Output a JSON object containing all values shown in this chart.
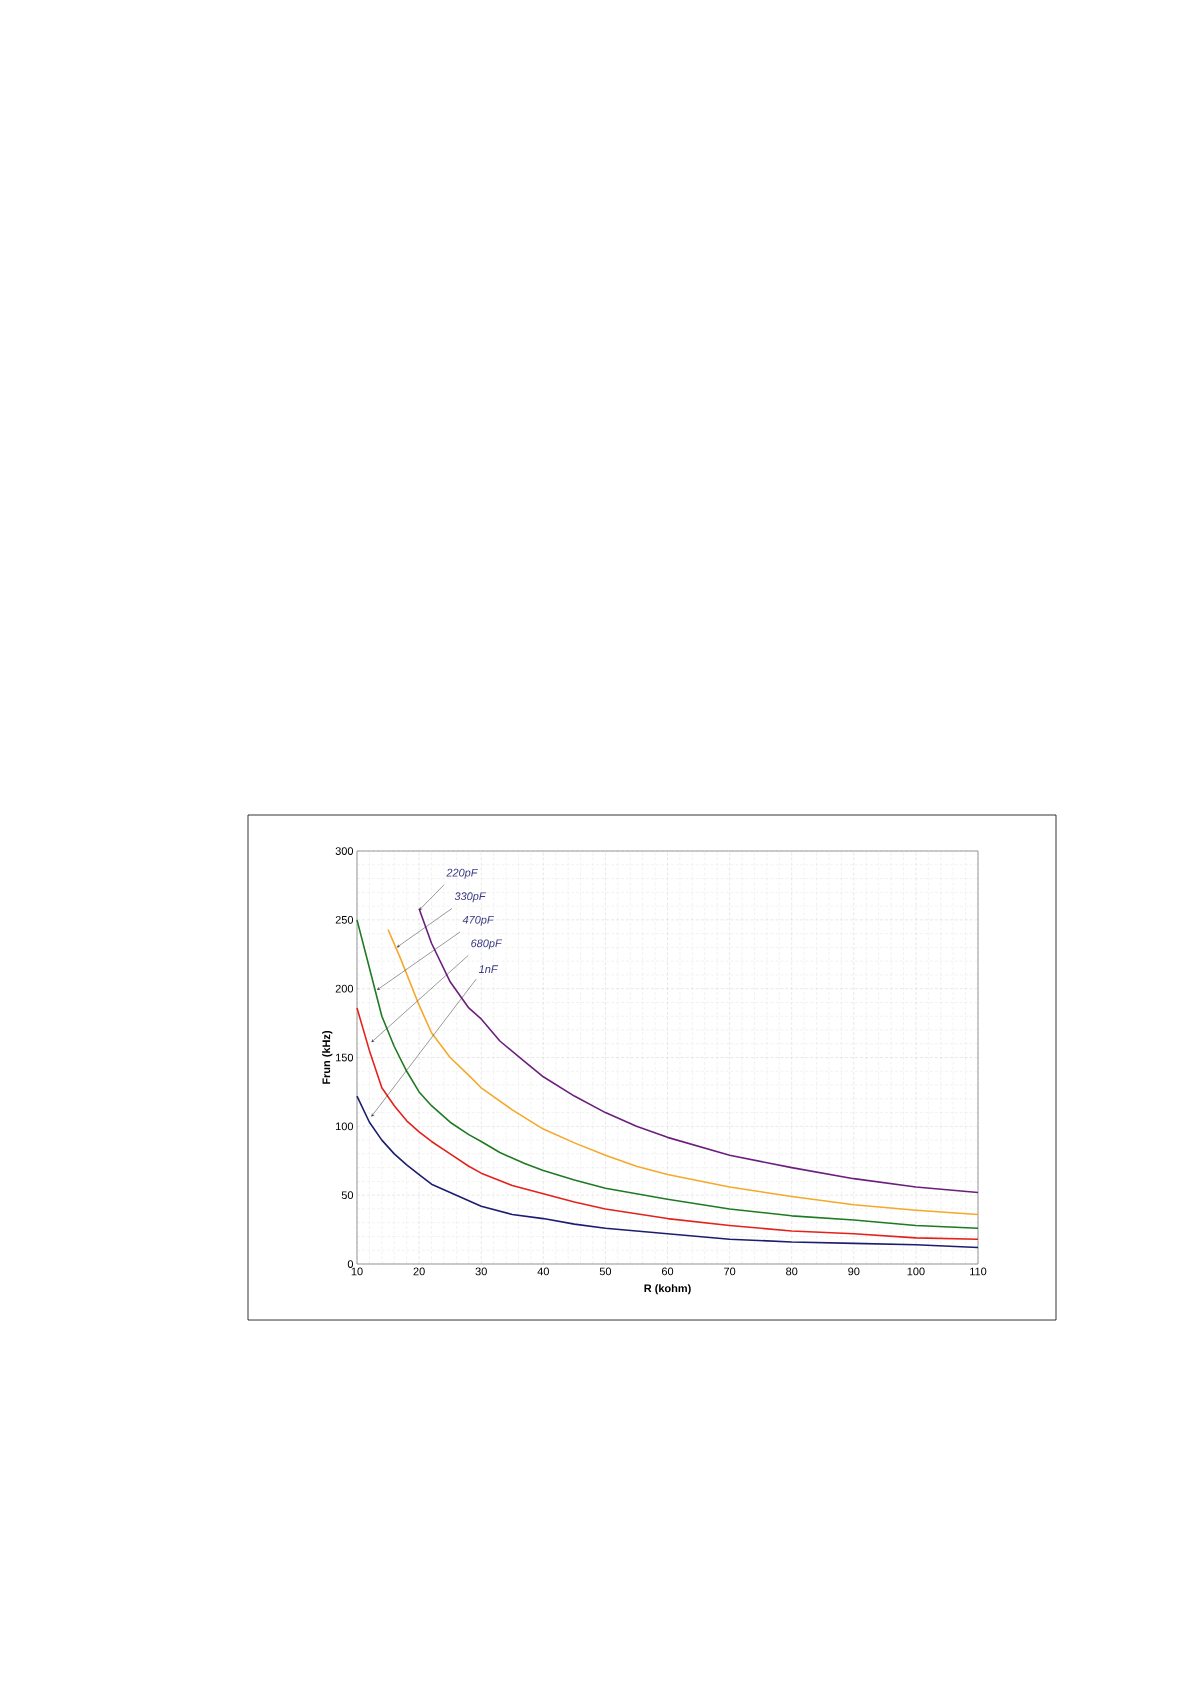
{
  "chart_data": {
    "type": "line",
    "xlabel": "R (kohm)",
    "ylabel": "Frun (kHz)",
    "xlim": [
      10,
      110
    ],
    "ylim": [
      0,
      300
    ],
    "xticks": [
      10,
      20,
      30,
      40,
      50,
      60,
      70,
      80,
      90,
      100,
      110
    ],
    "yticks": [
      0,
      50,
      100,
      150,
      200,
      250,
      300
    ],
    "grid": true,
    "marker": "none",
    "line_style": "solid",
    "series": [
      {
        "color": "#6b1f7c",
        "x": [
          20,
          22,
          25,
          28,
          30,
          33,
          37,
          40,
          45,
          50,
          55,
          60,
          70,
          80,
          90,
          100,
          110
        ],
        "values": [
          258,
          233,
          205,
          186,
          178,
          162,
          147,
          136,
          122,
          110,
          100,
          92,
          79,
          70,
          62,
          56,
          52
        ]
      },
      {
        "color": "#f5a82a",
        "x": [
          15,
          17,
          20,
          22,
          25,
          28,
          30,
          35,
          40,
          45,
          50,
          55,
          60,
          70,
          80,
          90,
          100,
          110
        ],
        "values": [
          243,
          222,
          188,
          168,
          150,
          137,
          128,
          112,
          98,
          88,
          79,
          71,
          65,
          56,
          49,
          43,
          39,
          36
        ]
      },
      {
        "color": "#1f7a23",
        "x": [
          10,
          12,
          14,
          16,
          18,
          20,
          22,
          25,
          28,
          30,
          33,
          37,
          40,
          45,
          50,
          60,
          70,
          80,
          90,
          100,
          110
        ],
        "values": [
          250,
          215,
          180,
          158,
          140,
          125,
          115,
          103,
          94,
          89,
          81,
          73,
          68,
          61,
          55,
          47,
          40,
          35,
          32,
          28,
          26
        ]
      },
      {
        "color": "#e3221c",
        "x": [
          10,
          12,
          14,
          16,
          18,
          20,
          22,
          25,
          28,
          30,
          35,
          40,
          45,
          50,
          60,
          70,
          80,
          90,
          100,
          110
        ],
        "values": [
          186,
          155,
          128,
          115,
          104,
          96,
          89,
          80,
          71,
          66,
          57,
          51,
          45,
          40,
          33,
          28,
          24,
          22,
          19,
          18
        ]
      },
      {
        "color": "#1c1d6e",
        "x": [
          10,
          12,
          14,
          16,
          18,
          20,
          22,
          25,
          28,
          30,
          35,
          40,
          45,
          50,
          60,
          70,
          80,
          90,
          100,
          110
        ],
        "values": [
          122,
          103,
          90,
          80,
          72,
          65,
          58,
          52,
          46,
          42,
          36,
          33,
          29,
          26,
          22,
          18,
          16,
          15,
          14,
          12
        ]
      }
    ],
    "annotations": [
      {
        "text": "220pF",
        "x": 20,
        "y": 257
      },
      {
        "text": "330pF",
        "x": 16.4,
        "y": 230
      },
      {
        "text": "470pF",
        "x": 13.2,
        "y": 199
      },
      {
        "text": "680pF",
        "x": 12.3,
        "y": 161
      },
      {
        "text": "1nF",
        "x": 12.3,
        "y": 107
      }
    ]
  }
}
